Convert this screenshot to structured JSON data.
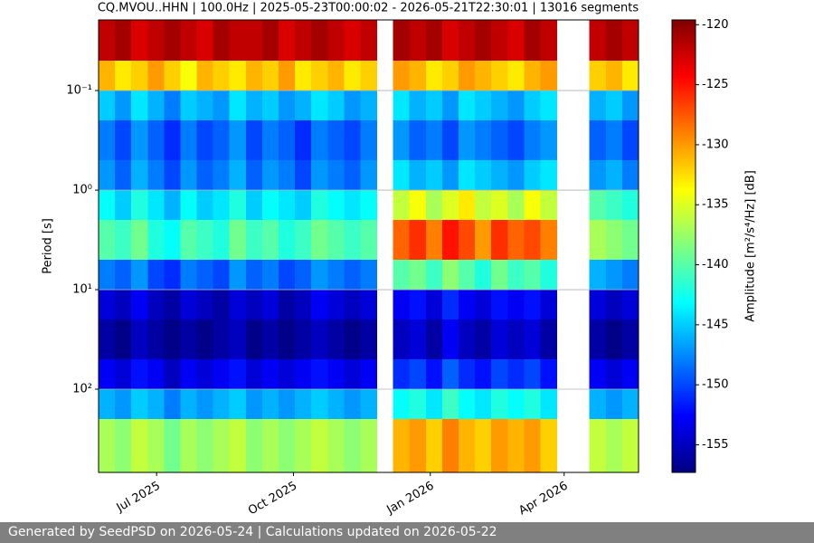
{
  "chart_data": {
    "type": "heatmap",
    "title": "CQ.MVOU..HHN | 100.0Hz | 2025-05-23T00:00:02 - 2026-05-21T22:30:01 | 13016 segments",
    "y_label": "Period [s]",
    "colorbar_label": "Amplitude [m²/s⁴/Hz] [dB]",
    "footer": "Generated by SeedPSD on 2026-05-24 | Calculations updated on 2026-05-22",
    "log_y": true,
    "invert_y": true,
    "grid": true,
    "colormap": "jet",
    "xlim": [
      "2025-05-23",
      "2026-05-21"
    ],
    "xticks": [
      {
        "value": "2025-07-01",
        "label": "Jul 2025"
      },
      {
        "value": "2025-10-01",
        "label": "Oct 2025"
      },
      {
        "value": "2026-01-01",
        "label": "Jan 2026"
      },
      {
        "value": "2026-04-01",
        "label": "Apr 2026"
      }
    ],
    "ylim": [
      0.0195,
      686
    ],
    "yticks": [
      {
        "value": 0.1,
        "label": "10⁻¹"
      },
      {
        "value": 1,
        "label": "10⁰"
      },
      {
        "value": 10,
        "label": "10¹"
      },
      {
        "value": 100,
        "label": "10²"
      }
    ],
    "clim": [
      -157.3,
      -119.6
    ],
    "cticks": [
      -120,
      -125,
      -130,
      -135,
      -140,
      -145,
      -150,
      -155
    ],
    "x_bins": [
      "2025-05-23",
      "2025-06-03",
      "2025-06-14",
      "2025-06-25",
      "2025-07-06",
      "2025-07-17",
      "2025-07-28",
      "2025-08-08",
      "2025-08-19",
      "2025-08-30",
      "2025-09-10",
      "2025-09-21",
      "2025-10-02",
      "2025-10-13",
      "2025-10-24",
      "2025-11-04",
      "2025-11-15",
      "2025-11-26",
      "2025-12-07",
      "2025-12-18",
      "2025-12-29",
      "2026-01-09",
      "2026-01-20",
      "2026-01-31",
      "2026-02-11",
      "2026-02-22",
      "2026-03-05",
      "2026-03-16",
      "2026-03-27",
      "2026-04-07",
      "2026-04-18",
      "2026-04-29",
      "2026-05-10",
      "2026-05-21"
    ],
    "y_bins": [
      0.0195,
      0.05,
      0.1,
      0.2,
      0.5,
      1,
      2,
      5,
      10,
      20,
      50,
      100,
      200,
      686
    ],
    "z": [
      [
        -122,
        -121,
        -123,
        -122,
        -121,
        -122,
        -123,
        -121,
        -122,
        -122,
        -121,
        -123,
        -122,
        -121,
        -122,
        -123,
        -122,
        null,
        -121,
        -122,
        -121,
        -123,
        -122,
        -121,
        -122,
        -123,
        -121,
        -122,
        null,
        null,
        -122,
        -121,
        -122
      ],
      [
        -131,
        -133,
        -132,
        -130,
        -132,
        -134,
        -131,
        -132,
        -133,
        -131,
        -132,
        -130,
        -133,
        -132,
        -131,
        -133,
        -132,
        null,
        -130,
        -131,
        -133,
        -132,
        -130,
        -131,
        -132,
        -133,
        -131,
        -130,
        null,
        null,
        -132,
        -131,
        -133
      ],
      [
        -145,
        -147,
        -144,
        -146,
        -148,
        -145,
        -146,
        -147,
        -144,
        -146,
        -145,
        -147,
        -146,
        -144,
        -145,
        -147,
        -146,
        null,
        -144,
        -146,
        -145,
        -147,
        -144,
        -145,
        -146,
        -147,
        -145,
        -144,
        null,
        null,
        -146,
        -145,
        -147
      ],
      [
        -148,
        -150,
        -147,
        -149,
        -151,
        -148,
        -150,
        -149,
        -147,
        -150,
        -148,
        -149,
        -151,
        -148,
        -149,
        -150,
        -148,
        null,
        -147,
        -149,
        -148,
        -150,
        -147,
        -148,
        -149,
        -150,
        -148,
        -147,
        null,
        null,
        -149,
        -148,
        -150
      ],
      [
        -147,
        -149,
        -146,
        -148,
        -150,
        -147,
        -149,
        -148,
        -146,
        -149,
        -147,
        -148,
        -150,
        -147,
        -148,
        -149,
        -147,
        null,
        -144,
        -146,
        -145,
        -147,
        -144,
        -145,
        -146,
        -147,
        -145,
        -144,
        null,
        null,
        -147,
        -146,
        -148
      ],
      [
        -143,
        -145,
        -142,
        -144,
        -146,
        -143,
        -145,
        -144,
        -142,
        -145,
        -143,
        -144,
        -145,
        -142,
        -143,
        -144,
        -143,
        null,
        -136,
        -134,
        -137,
        -135,
        -133,
        -136,
        -135,
        -137,
        -134,
        -136,
        null,
        null,
        -140,
        -141,
        -142
      ],
      [
        -140,
        -141,
        -139,
        -142,
        -143,
        -140,
        -141,
        -142,
        -139,
        -141,
        -140,
        -142,
        -141,
        -139,
        -140,
        -141,
        -140,
        null,
        -128,
        -126,
        -129,
        -125,
        -127,
        -130,
        -126,
        -128,
        -127,
        -129,
        null,
        null,
        -137,
        -138,
        -139
      ],
      [
        -148,
        -149,
        -147,
        -150,
        -151,
        -148,
        -149,
        -150,
        -147,
        -149,
        -148,
        -150,
        -149,
        -147,
        -148,
        -149,
        -148,
        null,
        -140,
        -139,
        -141,
        -138,
        -140,
        -142,
        -139,
        -141,
        -140,
        -142,
        null,
        null,
        -146,
        -147,
        -148
      ],
      [
        -154,
        -155,
        -153,
        -155,
        -156,
        -154,
        -155,
        -156,
        -154,
        -155,
        -154,
        -156,
        -155,
        -153,
        -154,
        -155,
        -154,
        null,
        -153,
        -152,
        -154,
        -151,
        -153,
        -154,
        -152,
        -153,
        -152,
        -154,
        null,
        null,
        -154,
        -155,
        -154
      ],
      [
        -156,
        -157,
        -155,
        -156,
        -157,
        -156,
        -157,
        -156,
        -155,
        -157,
        -156,
        -157,
        -156,
        -155,
        -156,
        -157,
        -156,
        null,
        -155,
        -154,
        -156,
        -153,
        -155,
        -156,
        -154,
        -155,
        -154,
        -156,
        null,
        null,
        -156,
        -157,
        -156
      ],
      [
        -153,
        -154,
        -152,
        -153,
        -155,
        -153,
        -154,
        -153,
        -152,
        -154,
        -153,
        -154,
        -153,
        -152,
        -153,
        -154,
        -153,
        null,
        -151,
        -150,
        -152,
        -149,
        -151,
        -152,
        -150,
        -151,
        -150,
        -152,
        null,
        null,
        -153,
        -154,
        -153
      ],
      [
        -146,
        -147,
        -145,
        -146,
        -148,
        -146,
        -147,
        -146,
        -145,
        -147,
        -146,
        -147,
        -146,
        -145,
        -146,
        -147,
        -146,
        null,
        -143,
        -142,
        -144,
        -141,
        -143,
        -144,
        -142,
        -143,
        -142,
        -144,
        null,
        null,
        -146,
        -147,
        -146
      ],
      [
        -137,
        -138,
        -136,
        -137,
        -139,
        -137,
        -138,
        -137,
        -136,
        -138,
        -137,
        -138,
        -137,
        -136,
        -137,
        -138,
        -137,
        null,
        -131,
        -130,
        -132,
        -129,
        -131,
        -132,
        -130,
        -131,
        -130,
        -132,
        null,
        null,
        -136,
        -137,
        -136
      ]
    ]
  }
}
